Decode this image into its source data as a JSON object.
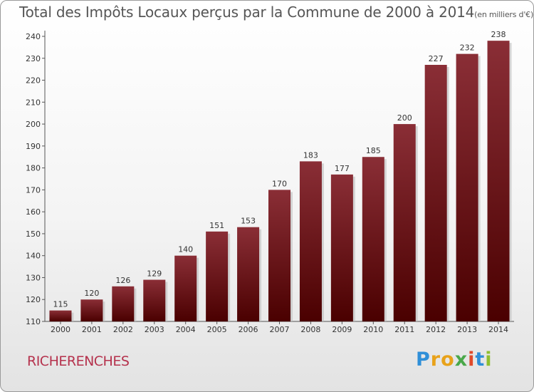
{
  "header": {
    "title": "Total des Impôts Locaux perçus par la Commune de 2000 à 2014",
    "subtitle": "(en milliers d'€)"
  },
  "footer": {
    "commune": "RICHERENCHES",
    "logo_letters": [
      "P",
      "r",
      "o",
      "x",
      "i",
      "t",
      "i"
    ]
  },
  "colors": {
    "bar_top": "#8a2e36",
    "bar_bottom": "#4a0000",
    "commune_text": "#b5324d"
  },
  "chart_data": {
    "type": "bar",
    "title": "Total des Impôts Locaux perçus par la Commune de 2000 à 2014",
    "ylabel": "en milliers d'€",
    "xlabel": "",
    "categories": [
      "2000",
      "2001",
      "2002",
      "2003",
      "2004",
      "2005",
      "2006",
      "2007",
      "2008",
      "2009",
      "2010",
      "2011",
      "2012",
      "2013",
      "2014"
    ],
    "values": [
      115,
      120,
      126,
      129,
      140,
      151,
      153,
      170,
      183,
      177,
      185,
      200,
      227,
      232,
      238
    ],
    "ylim": [
      110,
      240
    ],
    "yticks": [
      110,
      120,
      130,
      140,
      150,
      160,
      170,
      180,
      190,
      200,
      210,
      220,
      230,
      240
    ],
    "grid": false
  }
}
